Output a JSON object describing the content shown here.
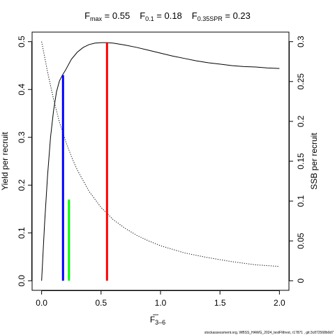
{
  "chart_data": {
    "type": "line",
    "title_parts": [
      {
        "main": "F",
        "sub": "max",
        "rest": " = 0.55"
      },
      {
        "main": "F",
        "sub": "0.1",
        "rest": " = 0.18"
      },
      {
        "main": "F",
        "sub": "0.35SPR",
        "rest": " = 0.23"
      }
    ],
    "xlabel": {
      "main": "F",
      "overbar": true,
      "sub": "3–6"
    },
    "ylabel": "Yield per recruit",
    "y2label": "SSB per recruit",
    "xlim": [
      -0.08,
      2.08
    ],
    "ylim": [
      -0.02,
      0.52
    ],
    "y2lim": [
      -0.012,
      0.312
    ],
    "x_ticks": [
      0,
      0.5,
      1,
      1.5,
      2
    ],
    "x_tick_labels": [
      "0.0",
      "0.5",
      "1.0",
      "1.5",
      "2.0"
    ],
    "y_ticks": [
      0,
      0.1,
      0.2,
      0.3,
      0.4,
      0.5
    ],
    "y_tick_labels": [
      "0.0",
      "0.1",
      "0.2",
      "0.3",
      "0.4",
      "0.5"
    ],
    "y2_ticks": [
      0,
      0.05,
      0.1,
      0.15,
      0.2,
      0.25,
      0.3
    ],
    "y2_tick_labels": [
      "0",
      "0.05",
      "0.1",
      "0.15",
      "0.2",
      "0.25",
      "0.3"
    ],
    "grid": false,
    "series": [
      {
        "axis": "left",
        "style": "solid",
        "color": "#000000",
        "x": [
          0,
          0.025,
          0.05,
          0.075,
          0.1,
          0.125,
          0.15,
          0.175,
          0.2,
          0.25,
          0.3,
          0.35,
          0.4,
          0.45,
          0.5,
          0.55,
          0.6,
          0.7,
          0.8,
          0.9,
          1.0,
          1.1,
          1.2,
          1.3,
          1.4,
          1.5,
          1.6,
          1.7,
          1.8,
          1.9,
          2.0
        ],
        "y": [
          0,
          0.12,
          0.22,
          0.3,
          0.355,
          0.395,
          0.418,
          0.43,
          0.44,
          0.463,
          0.478,
          0.488,
          0.494,
          0.497,
          0.498,
          0.498,
          0.497,
          0.493,
          0.488,
          0.482,
          0.476,
          0.47,
          0.465,
          0.46,
          0.456,
          0.453,
          0.45,
          0.448,
          0.447,
          0.445,
          0.444
        ]
      },
      {
        "axis": "right",
        "style": "dotted",
        "color": "#000000",
        "x": [
          0,
          0.05,
          0.1,
          0.15,
          0.2,
          0.25,
          0.3,
          0.4,
          0.5,
          0.6,
          0.7,
          0.8,
          0.9,
          1.0,
          1.2,
          1.4,
          1.6,
          1.8,
          2.0
        ],
        "y": [
          0.3,
          0.262,
          0.228,
          0.199,
          0.176,
          0.156,
          0.139,
          0.112,
          0.092,
          0.077,
          0.066,
          0.057,
          0.05,
          0.044,
          0.035,
          0.029,
          0.024,
          0.02,
          0.018
        ]
      }
    ],
    "reference_lines": [
      {
        "label": "F0.1",
        "x": 0.18,
        "y": 0.43,
        "color": "#0000ff"
      },
      {
        "label": "F0.35SPR",
        "x": 0.23,
        "y": 0.17,
        "color": "#00ff00"
      },
      {
        "label": "Fmax",
        "x": 0.55,
        "y": 0.498,
        "color": "#ff0000"
      }
    ],
    "caption": "stockassessment.org, WBSS_HAWG_2024_testFMrest, r17871 , git:3c872568b0d7"
  }
}
